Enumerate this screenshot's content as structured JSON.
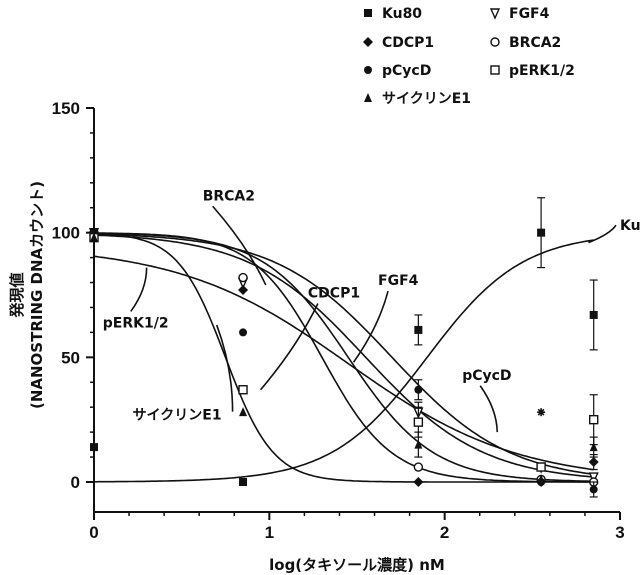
{
  "chart_data": {
    "type": "scatter",
    "title": "",
    "xlabel": "log(タキソール濃度) nM",
    "ylabel": "発現値",
    "ylabel_sub": "(NANOSTRING DNAカウント)",
    "xlim": [
      0,
      3
    ],
    "ylim": [
      0,
      150
    ],
    "xticks": [
      0,
      1,
      2,
      3
    ],
    "yticks": [
      0,
      50,
      100,
      150
    ],
    "x": [
      0,
      0.85,
      1.85,
      2.55,
      2.85
    ],
    "legend": [
      {
        "name": "Ku80",
        "marker": "square-filled"
      },
      {
        "name": "FGF4",
        "marker": "triangle-down-open"
      },
      {
        "name": "CDCP1",
        "marker": "diamond-filled"
      },
      {
        "name": "BRCA2",
        "marker": "circle-open"
      },
      {
        "name": "pCycD",
        "marker": "circle-filled"
      },
      {
        "name": "pERK1/2",
        "marker": "square-open"
      },
      {
        "name": "サイクリンE1",
        "marker": "triangle-filled"
      }
    ],
    "series": [
      {
        "name": "Ku80",
        "marker": "square-filled",
        "points": [
          {
            "x": 0,
            "y": 14,
            "err": 2
          },
          {
            "x": 0.85,
            "y": 0,
            "err": 2
          },
          {
            "x": 1.85,
            "y": 61,
            "err": 6
          },
          {
            "x": 2.55,
            "y": 100,
            "err": 14
          },
          {
            "x": 2.85,
            "y": 67,
            "err": 14
          }
        ],
        "curve": {
          "top": 100,
          "bottom": 0,
          "ic50": 1.9,
          "hill": 1.6
        }
      },
      {
        "name": "FGF4",
        "marker": "triangle-down-open",
        "points": [
          {
            "x": 0,
            "y": 100,
            "err": 2
          },
          {
            "x": 0.85,
            "y": 80,
            "err": 2
          },
          {
            "x": 1.85,
            "y": 28,
            "err": 4
          },
          {
            "x": 2.55,
            "y": 6,
            "err": 2
          },
          {
            "x": 2.85,
            "y": 2,
            "err": 2
          }
        ],
        "curve": {
          "top": 100,
          "bottom": 0,
          "ic50": 1.55,
          "hill": 1.3
        }
      },
      {
        "name": "CDCP1",
        "marker": "diamond-filled",
        "points": [
          {
            "x": 0,
            "y": 99,
            "err": 2
          },
          {
            "x": 0.85,
            "y": 77,
            "err": 2
          },
          {
            "x": 1.85,
            "y": 0,
            "err": 2
          },
          {
            "x": 2.55,
            "y": 0,
            "err": 2
          },
          {
            "x": 2.85,
            "y": 8,
            "err": 3
          }
        ],
        "curve": {
          "top": 100,
          "bottom": 0,
          "ic50": 1.3,
          "hill": 2.2
        }
      },
      {
        "name": "BRCA2",
        "marker": "circle-open",
        "points": [
          {
            "x": 0,
            "y": 100,
            "err": 2
          },
          {
            "x": 0.85,
            "y": 82,
            "err": 2
          },
          {
            "x": 1.85,
            "y": 6,
            "err": 2
          },
          {
            "x": 2.55,
            "y": 1,
            "err": 2
          },
          {
            "x": 2.85,
            "y": 0,
            "err": 2
          }
        ],
        "curve": {
          "top": 100,
          "bottom": 0,
          "ic50": 1.45,
          "hill": 1.8
        }
      },
      {
        "name": "pCycD",
        "marker": "circle-filled",
        "points": [
          {
            "x": 0,
            "y": 100,
            "err": 2
          },
          {
            "x": 0.85,
            "y": 60,
            "err": 2
          },
          {
            "x": 1.85,
            "y": 37,
            "err": 4
          },
          {
            "x": 2.55,
            "y": 0,
            "err": 2
          },
          {
            "x": 2.85,
            "y": -3,
            "err": 3
          }
        ],
        "curve": {
          "top": 100,
          "bottom": 0,
          "ic50": 1.7,
          "hill": 1.3
        }
      },
      {
        "name": "pERK1/2",
        "marker": "square-open",
        "points": [
          {
            "x": 0,
            "y": 98,
            "err": 2
          },
          {
            "x": 0.85,
            "y": 37,
            "err": 2
          },
          {
            "x": 1.85,
            "y": 24,
            "err": 6
          },
          {
            "x": 2.55,
            "y": 6,
            "err": 2
          },
          {
            "x": 2.85,
            "y": 25,
            "err": 10
          }
        ],
        "curve": {
          "top": 95,
          "bottom": 0,
          "ic50": 1.45,
          "hill": 0.9
        }
      },
      {
        "name": "サイクリンE1",
        "marker": "triangle-filled",
        "points": [
          {
            "x": 0,
            "y": 98,
            "err": 2
          },
          {
            "x": 0.85,
            "y": 28,
            "err": 2
          },
          {
            "x": 1.85,
            "y": 15,
            "err": 5
          },
          {
            "x": 2.55,
            "y": 1,
            "err": 2
          },
          {
            "x": 2.85,
            "y": 14,
            "err": 4
          }
        ],
        "curve": {
          "top": 100,
          "bottom": 0,
          "ic50": 0.75,
          "hill": 3.2
        }
      }
    ],
    "extra_markers": [
      {
        "x": 2.55,
        "y": 28,
        "marker": "asterisk"
      }
    ],
    "curve_labels": [
      {
        "text": "BRCA2",
        "anchor": "start",
        "lx": 0.62,
        "ly": 113,
        "tx": 0.98,
        "ty": 79
      },
      {
        "text": "CDCP1",
        "anchor": "start",
        "lx": 1.22,
        "ly": 74,
        "tx": 0.95,
        "ty": 37
      },
      {
        "text": "FGF4",
        "anchor": "start",
        "lx": 1.62,
        "ly": 79,
        "tx": 1.48,
        "ty": 48
      },
      {
        "text": "pERK1/2",
        "anchor": "start",
        "lx": 0.05,
        "ly": 62,
        "tx": 0.3,
        "ty": 86
      },
      {
        "text": "pCycD",
        "anchor": "start",
        "lx": 2.1,
        "ly": 41,
        "tx": 2.3,
        "ty": 20
      },
      {
        "text": "サイクリンE1",
        "anchor": "start",
        "lx": 0.22,
        "ly": 25,
        "tx": 0.7,
        "ty": 63
      },
      {
        "text": "Ku80",
        "anchor": "start",
        "lx": 3.0,
        "ly": 101,
        "tx": 2.82,
        "ty": 96
      }
    ]
  }
}
